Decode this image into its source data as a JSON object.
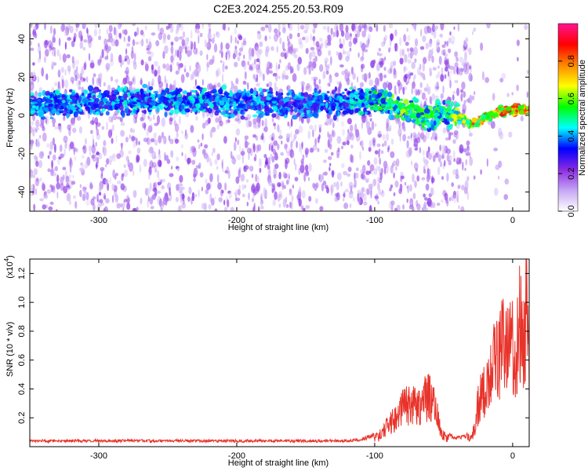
{
  "chart_data": [
    {
      "type": "heatmap",
      "title": "C2E3.2024.255.20.53.R09",
      "xlabel": "Height of straight line (km)",
      "ylabel": "Frequency (Hz)",
      "xlim": [
        -350,
        12
      ],
      "ylim": [
        -50,
        48
      ],
      "x_ticks": [
        -300,
        -200,
        -100,
        0
      ],
      "x_tick_labels": [
        "-300",
        "-200",
        "-100",
        "0"
      ],
      "y_ticks": [
        40,
        20,
        0,
        -20,
        -40
      ],
      "y_tick_labels": [
        "40",
        "20",
        "0",
        "-20",
        "-40"
      ],
      "colorbar": {
        "label": "Normalized spectral amplitude",
        "range": [
          0,
          1
        ],
        "ticks": [
          0,
          0.2,
          0.4,
          0.6,
          0.8
        ],
        "tick_labels": [
          "0.0",
          "0.2",
          "0.4",
          "0.6",
          "0.8"
        ],
        "colormap": [
          "#ffffff",
          "#c6a6f4",
          "#8a2be2",
          "#0000ff",
          "#00ffff",
          "#00ff00",
          "#ffff00",
          "#ff8800",
          "#ff0000",
          "#ff1493"
        ]
      },
      "ridge": {
        "x": [
          -350,
          -300,
          -250,
          -200,
          -150,
          -120,
          -100,
          -90,
          -80,
          -70,
          -60,
          -50,
          -40,
          -30,
          -20,
          -10,
          0,
          12
        ],
        "frequency": [
          5,
          7,
          8,
          7,
          6,
          7,
          8,
          6,
          3,
          1,
          0,
          1,
          0,
          -5,
          -1,
          2,
          3,
          3
        ],
        "amplitude": [
          0.45,
          0.45,
          0.47,
          0.45,
          0.42,
          0.45,
          0.55,
          0.6,
          0.62,
          0.62,
          0.6,
          0.55,
          0.7,
          0.85,
          0.85,
          0.88,
          0.9,
          0.9
        ]
      },
      "grid": false
    },
    {
      "type": "line",
      "xlabel": "Height of straight line (km)",
      "ylabel": "SNR (10 * v/v)",
      "y_multiplier": "(x10^4)",
      "xlim": [
        -350,
        12
      ],
      "ylim": [
        0,
        1.3
      ],
      "x_ticks": [
        -300,
        -200,
        -100,
        0
      ],
      "x_tick_labels": [
        "-300",
        "-200",
        "-100",
        "0"
      ],
      "y_ticks": [
        0.2,
        0.4,
        0.6,
        0.8,
        1.0,
        1.2
      ],
      "y_tick_labels": [
        "0.2",
        "0.4",
        "0.6",
        "0.8",
        "1.0",
        "1.2"
      ],
      "line_color": "#e8332a",
      "series": [
        {
          "x": [
            -350,
            -300,
            -250,
            -200,
            -150,
            -120,
            -110,
            -100,
            -95,
            -90,
            -85,
            -80,
            -75,
            -70,
            -65,
            -60,
            -55,
            -50,
            -45,
            -40,
            -35,
            -30,
            -28,
            -25,
            -20,
            -15,
            -12,
            -10,
            -8,
            -5,
            -2,
            0,
            3,
            5,
            8,
            10,
            12
          ],
          "y": [
            0.04,
            0.04,
            0.04,
            0.04,
            0.04,
            0.04,
            0.05,
            0.08,
            0.12,
            0.2,
            0.28,
            0.36,
            0.4,
            0.38,
            0.44,
            0.48,
            0.3,
            0.1,
            0.07,
            0.06,
            0.07,
            0.09,
            0.15,
            0.4,
            0.55,
            0.72,
            0.9,
            0.85,
            1.02,
            0.92,
            0.95,
            1.0,
            0.95,
            1.15,
            1.1,
            1.25,
            0.6
          ]
        }
      ],
      "grid": false
    }
  ]
}
